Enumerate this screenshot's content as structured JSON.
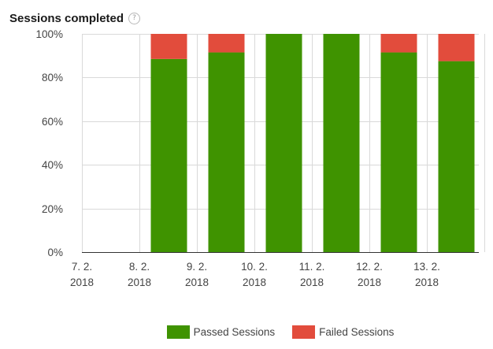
{
  "header": {
    "title": "Sessions completed",
    "help_glyph": "?"
  },
  "colors": {
    "passed": "#3f9300",
    "failed": "#e24c3c",
    "grid": "#d9d9d9",
    "axis": "#333333"
  },
  "chart_data": {
    "type": "bar",
    "stacked": true,
    "categories": [
      "7. 2. 2018",
      "8. 2. 2018",
      "9. 2. 2018",
      "10. 2. 2018",
      "11. 2. 2018",
      "12. 2. 2018",
      "13. 2. 2018"
    ],
    "category_lines": [
      [
        "7. 2.",
        "2018"
      ],
      [
        "8. 2.",
        "2018"
      ],
      [
        "9. 2.",
        "2018"
      ],
      [
        "10. 2.",
        "2018"
      ],
      [
        "11. 2.",
        "2018"
      ],
      [
        "12. 2.",
        "2018"
      ],
      [
        "13. 2.",
        "2018"
      ]
    ],
    "series": [
      {
        "name": "Passed Sessions",
        "color": "#3f9300",
        "values": [
          null,
          88.5,
          91.5,
          100,
          100,
          91.5,
          87.5
        ]
      },
      {
        "name": "Failed Sessions",
        "color": "#e24c3c",
        "values": [
          null,
          11.5,
          8.5,
          0,
          0,
          8.5,
          12.5
        ]
      }
    ],
    "ylim": [
      0,
      100
    ],
    "yticks": [
      0,
      20,
      40,
      60,
      80,
      100
    ],
    "ytick_labels": [
      "0%",
      "20%",
      "40%",
      "60%",
      "80%",
      "100%"
    ],
    "grid": true,
    "legend_position": "bottom"
  }
}
